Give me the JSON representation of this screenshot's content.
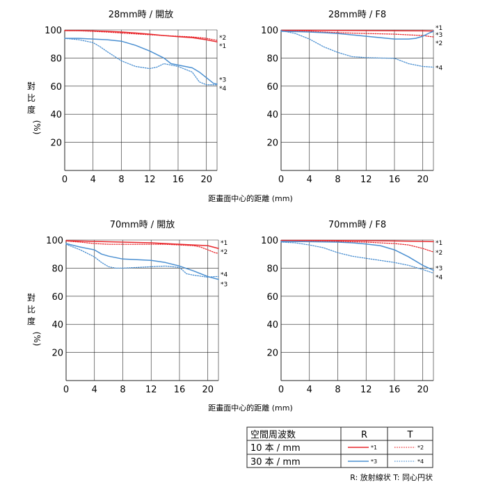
{
  "colors": {
    "red": "#e8262b",
    "blue": "#4a8fd1",
    "grid": "#222222"
  },
  "axes": {
    "x_ticks": [
      0,
      4,
      8,
      12,
      16,
      20
    ],
    "y_ticks": [
      20,
      40,
      60,
      80,
      100
    ],
    "xlim": [
      0,
      21.5
    ],
    "ylim": [
      0,
      100
    ],
    "xlabel": "距畫面中心的距離 (mm)",
    "ylabel_chars": [
      "對",
      "比",
      "度",
      "(%)"
    ]
  },
  "chart_data": [
    {
      "type": "line",
      "title": "28mm時 / 開放",
      "series": [
        {
          "name": "*1",
          "color": "red",
          "dash": false,
          "x": [
            0,
            2,
            4,
            6,
            8,
            10,
            12,
            14,
            16,
            18,
            20,
            21.5
          ],
          "y": [
            99.5,
            99.5,
            99.3,
            99,
            98.5,
            97.8,
            97,
            96,
            95.2,
            94.5,
            93,
            91.5
          ]
        },
        {
          "name": "*2",
          "color": "red",
          "dash": true,
          "x": [
            0,
            2,
            4,
            6,
            8,
            10,
            12,
            14,
            16,
            18,
            20,
            21.5
          ],
          "y": [
            99.5,
            99.4,
            99,
            98.5,
            97.8,
            97.2,
            96.6,
            96,
            95.5,
            95,
            94,
            92.5
          ]
        },
        {
          "name": "*3",
          "color": "blue",
          "dash": false,
          "x": [
            0,
            2,
            4,
            6,
            8,
            10,
            12,
            14,
            15,
            16,
            18,
            19,
            20,
            21,
            21.5
          ],
          "y": [
            94,
            94,
            93.5,
            93,
            92,
            89,
            85,
            80,
            76,
            75,
            73,
            70,
            66,
            62,
            61.5
          ]
        },
        {
          "name": "*4",
          "color": "blue",
          "dash": true,
          "x": [
            0,
            2,
            4,
            5,
            6,
            8,
            9,
            10,
            12,
            13,
            14,
            15,
            16,
            18,
            19,
            20,
            21,
            21.5
          ],
          "y": [
            94,
            93,
            91,
            88,
            84.5,
            78,
            76,
            74,
            72.5,
            73.5,
            76,
            75,
            74,
            70,
            63,
            61,
            61,
            61
          ]
        }
      ],
      "end_labels": [
        {
          "text": "*2",
          "y": 94.5
        },
        {
          "text": "*1",
          "y": 88.5
        },
        {
          "text": "*3",
          "y": 64.5
        },
        {
          "text": "*4",
          "y": 58.5
        }
      ]
    },
    {
      "type": "line",
      "title": "28mm時 / F8",
      "series": [
        {
          "name": "*1",
          "color": "red",
          "dash": false,
          "x": [
            0,
            4,
            8,
            12,
            16,
            20,
            21.5
          ],
          "y": [
            99.7,
            99.7,
            99.6,
            99.5,
            99.4,
            99.3,
            99.2
          ]
        },
        {
          "name": "*2",
          "color": "red",
          "dash": true,
          "x": [
            0,
            4,
            8,
            12,
            16,
            20,
            21.5
          ],
          "y": [
            99.5,
            99,
            98,
            97.5,
            97,
            96,
            95
          ]
        },
        {
          "name": "*3",
          "color": "blue",
          "dash": false,
          "x": [
            0,
            2,
            4,
            6,
            8,
            10,
            12,
            14,
            16,
            18,
            19,
            20,
            21,
            21.5
          ],
          "y": [
            99,
            98.8,
            98.5,
            98,
            97.5,
            96.5,
            95.5,
            94.5,
            93.5,
            93.5,
            94,
            95.5,
            98,
            99
          ]
        },
        {
          "name": "*4",
          "color": "blue",
          "dash": true,
          "x": [
            0,
            2,
            4,
            6,
            8,
            10,
            12,
            14,
            16,
            18,
            20,
            21.5
          ],
          "y": [
            99.5,
            97.5,
            93.5,
            88,
            84,
            81,
            80.3,
            80,
            79.8,
            76,
            74,
            73.5
          ]
        }
      ],
      "end_labels": [
        {
          "text": "*1",
          "y": 101.5
        },
        {
          "text": "*3",
          "y": 96.5
        },
        {
          "text": "*2",
          "y": 90.5
        },
        {
          "text": "*4",
          "y": 73
        }
      ]
    },
    {
      "type": "line",
      "title": "70mm時 / 開放",
      "series": [
        {
          "name": "*1",
          "color": "red",
          "dash": false,
          "x": [
            0,
            4,
            8,
            12,
            16,
            18,
            20,
            21.5
          ],
          "y": [
            99.5,
            99,
            98.5,
            98,
            97,
            96.5,
            96,
            94
          ]
        },
        {
          "name": "*2",
          "color": "red",
          "dash": true,
          "x": [
            0,
            2,
            4,
            6,
            8,
            10,
            12,
            14,
            16,
            18,
            19,
            20,
            21,
            21.5
          ],
          "y": [
            99.3,
            98.5,
            97.5,
            97,
            97,
            97,
            97,
            97,
            96.5,
            96,
            95,
            93,
            91,
            90.5
          ]
        },
        {
          "name": "*3",
          "color": "blue",
          "dash": false,
          "x": [
            0,
            2,
            4,
            5,
            6,
            8,
            10,
            12,
            14,
            16,
            18,
            20,
            21.5
          ],
          "y": [
            97.5,
            95,
            93,
            90,
            88.5,
            86.5,
            86,
            85.5,
            84,
            81.5,
            78,
            74,
            72
          ]
        },
        {
          "name": "*4",
          "color": "blue",
          "dash": true,
          "x": [
            0,
            2,
            4,
            5,
            6,
            7,
            8,
            10,
            12,
            14,
            16,
            17,
            18,
            20,
            21,
            21.5
          ],
          "y": [
            97,
            93,
            88,
            84,
            81,
            80,
            80,
            80.5,
            81,
            81.5,
            80.5,
            76,
            75,
            73.5,
            74,
            74
          ]
        }
      ],
      "end_labels": [
        {
          "text": "*1",
          "y": 98
        },
        {
          "text": "*2",
          "y": 91.5
        },
        {
          "text": "*4",
          "y": 75.5
        },
        {
          "text": "*3",
          "y": 68.5
        }
      ]
    },
    {
      "type": "line",
      "title": "70mm時 / F8",
      "series": [
        {
          "name": "*1",
          "color": "red",
          "dash": false,
          "x": [
            0,
            4,
            8,
            12,
            16,
            20,
            21.5
          ],
          "y": [
            99.7,
            99.7,
            99.6,
            99.5,
            99.3,
            99,
            98.8
          ]
        },
        {
          "name": "*2",
          "color": "red",
          "dash": true,
          "x": [
            0,
            4,
            8,
            12,
            16,
            18,
            20,
            21.5
          ],
          "y": [
            99.5,
            99.3,
            99,
            98.5,
            97.5,
            96.5,
            94,
            91.5
          ]
        },
        {
          "name": "*3",
          "color": "blue",
          "dash": false,
          "x": [
            0,
            4,
            8,
            10,
            12,
            14,
            16,
            18,
            20,
            21.5
          ],
          "y": [
            99,
            98.8,
            98.5,
            98,
            97.2,
            96,
            93,
            88,
            82,
            78.5
          ]
        },
        {
          "name": "*4",
          "color": "blue",
          "dash": true,
          "x": [
            0,
            2,
            4,
            6,
            8,
            10,
            12,
            14,
            16,
            18,
            20,
            21.5
          ],
          "y": [
            98.5,
            98,
            96.5,
            94.5,
            91,
            88.5,
            87,
            85.5,
            84,
            82,
            79,
            76.5
          ]
        }
      ],
      "end_labels": [
        {
          "text": "*1",
          "y": 98
        },
        {
          "text": "*2",
          "y": 91
        },
        {
          "text": "*3",
          "y": 80
        },
        {
          "text": "*4",
          "y": 73.5
        }
      ]
    }
  ],
  "legend_table": {
    "header": [
      "空間周波数",
      "R",
      "T"
    ],
    "rows": [
      {
        "label": "10 本 / mm",
        "r_mark": "*1",
        "t_mark": "*2"
      },
      {
        "label": "30 本 / mm",
        "r_mark": "*3",
        "t_mark": "*4"
      }
    ],
    "footnote": "R: 放射線状  T: 同心円状"
  }
}
